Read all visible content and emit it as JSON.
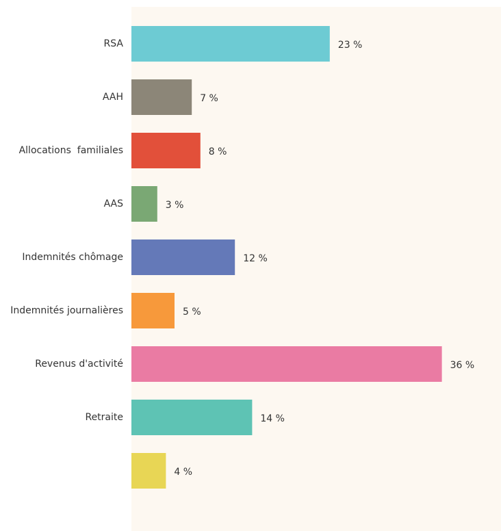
{
  "chart_data": {
    "type": "hbar",
    "categories": [
      "RSA",
      "AAH",
      "Allocations  familiales",
      "AAS",
      "Indemnités chômage",
      "Indemnités journalières",
      "Revenus d'activité",
      "Retraite",
      null
    ],
    "values": [
      23,
      7,
      8,
      3,
      12,
      5,
      36,
      14,
      4
    ],
    "value_labels": [
      "23 %",
      "7 %",
      "8 %",
      "3 %",
      "12 %",
      "5 %",
      "36 %",
      "14 %",
      "4 %"
    ],
    "colors": [
      "#6dcbd3",
      "#8c8678",
      "#e2503a",
      "#7aa874",
      "#6479b8",
      "#f7993b",
      "#ea7ba3",
      "#5ec3b4",
      "#e8d655"
    ]
  }
}
